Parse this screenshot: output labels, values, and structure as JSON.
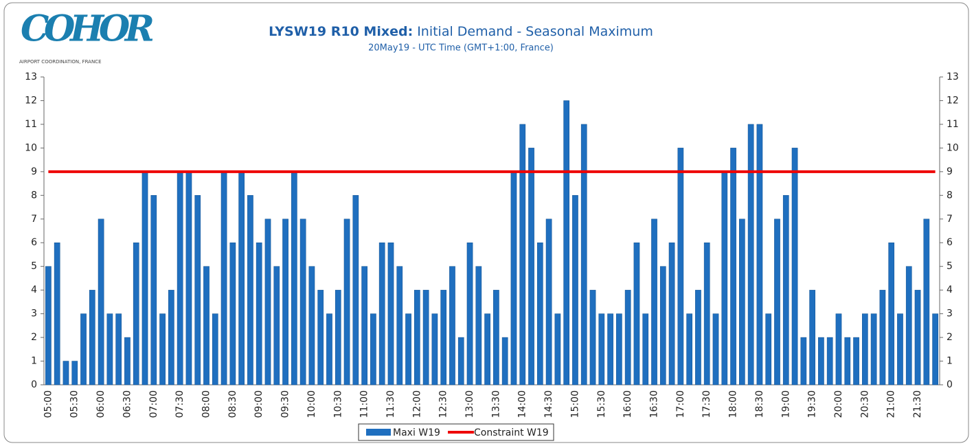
{
  "logo": {
    "name": "COHOR",
    "tagline": "AIRPORT COORDINATION, FRANCE"
  },
  "chart_data": {
    "type": "bar",
    "title_bold": "LYSW19 R10  Mixed:",
    "title": "Initial Demand - Seasonal Maximum",
    "subtitle": "20May19 - UTC Time (GMT+1:00, France)",
    "categories": [
      "05:00",
      null,
      null,
      "05:30",
      null,
      null,
      "06:00",
      null,
      null,
      "06:30",
      null,
      null,
      "07:00",
      null,
      null,
      "07:30",
      null,
      null,
      "08:00",
      null,
      null,
      "08:30",
      null,
      null,
      "09:00",
      null,
      null,
      "09:30",
      null,
      null,
      "10:00",
      null,
      null,
      "10:30",
      null,
      null,
      "11:00",
      null,
      null,
      "11:30",
      null,
      null,
      "12:00",
      null,
      null,
      "12:30",
      null,
      null,
      "13:00",
      null,
      null,
      "13:30",
      null,
      null,
      "14:00",
      null,
      null,
      "14:30",
      null,
      null,
      "15:00",
      null,
      null,
      "15:30",
      null,
      null,
      "16:00",
      null,
      null,
      "16:30",
      null,
      null,
      "17:00",
      null,
      null,
      "17:30",
      null,
      null,
      "18:00",
      null,
      null,
      "18:30",
      null,
      null,
      "19:00",
      null,
      null,
      "19:30",
      null,
      null,
      "20:00",
      null,
      null,
      "20:30",
      null,
      null,
      "21:00",
      null,
      null,
      "21:30",
      null,
      null
    ],
    "series": [
      {
        "name": "Maxi W19",
        "color": "#1f6fbf",
        "type": "bar",
        "values": [
          5,
          6,
          1,
          1,
          3,
          4,
          7,
          3,
          3,
          2,
          6,
          9,
          8,
          3,
          4,
          9,
          9,
          8,
          5,
          3,
          9,
          6,
          9,
          8,
          6,
          7,
          5,
          7,
          9,
          7,
          5,
          4,
          3,
          4,
          7,
          8,
          5,
          3,
          6,
          6,
          5,
          3,
          4,
          4,
          3,
          4,
          5,
          2,
          6,
          5,
          3,
          4,
          2,
          9,
          11,
          10,
          6,
          7,
          3,
          12,
          8,
          11,
          4,
          3,
          3,
          3,
          4,
          6,
          3,
          7,
          5,
          6,
          10,
          3,
          4,
          6,
          3,
          9,
          10,
          7,
          11,
          11,
          3,
          7,
          8,
          10,
          2,
          4,
          2,
          2,
          3,
          2,
          2,
          3,
          3,
          4,
          6,
          3,
          5,
          4,
          7,
          3
        ]
      },
      {
        "name": "Constraint W19",
        "color": "#ee0000",
        "type": "line",
        "values": [
          9,
          9,
          9,
          9,
          9,
          9,
          9,
          9,
          9,
          9,
          9,
          9,
          9,
          9,
          9,
          9,
          9,
          9,
          9,
          9,
          9,
          9,
          9,
          9,
          9,
          9,
          9,
          9,
          9,
          9,
          9,
          9,
          9,
          9,
          9,
          9,
          9,
          9,
          9,
          9,
          9,
          9,
          9,
          9,
          9,
          9,
          9,
          9,
          9,
          9,
          9,
          9,
          9,
          9,
          9,
          9,
          9,
          9,
          9,
          9,
          9,
          9,
          9,
          9,
          9,
          9,
          9,
          9,
          9,
          9,
          9,
          9,
          9,
          9,
          9,
          9,
          9,
          9,
          9,
          9,
          9,
          9,
          9,
          9,
          9,
          9,
          9,
          9,
          9,
          9,
          9,
          9,
          9,
          9,
          9,
          9,
          9,
          9,
          9,
          9,
          9,
          9
        ]
      }
    ],
    "ylim": [
      0,
      13
    ],
    "yticks": [
      0,
      1,
      2,
      3,
      4,
      5,
      6,
      7,
      8,
      9,
      10,
      11,
      12,
      13
    ],
    "y2lim": [
      0,
      13
    ],
    "y2ticks": [
      0,
      1,
      2,
      3,
      4,
      5,
      6,
      7,
      8,
      9,
      10,
      11,
      12,
      13
    ],
    "legend": "bottom"
  }
}
